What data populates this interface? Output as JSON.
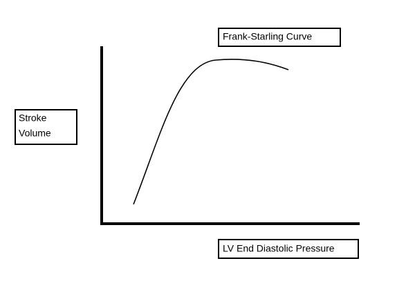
{
  "title": "Frank-Starling Curve",
  "y_axis_label": {
    "lines": [
      "Stroke",
      "Volume"
    ]
  },
  "x_axis_label": "LV End Diastolic Pressure"
}
